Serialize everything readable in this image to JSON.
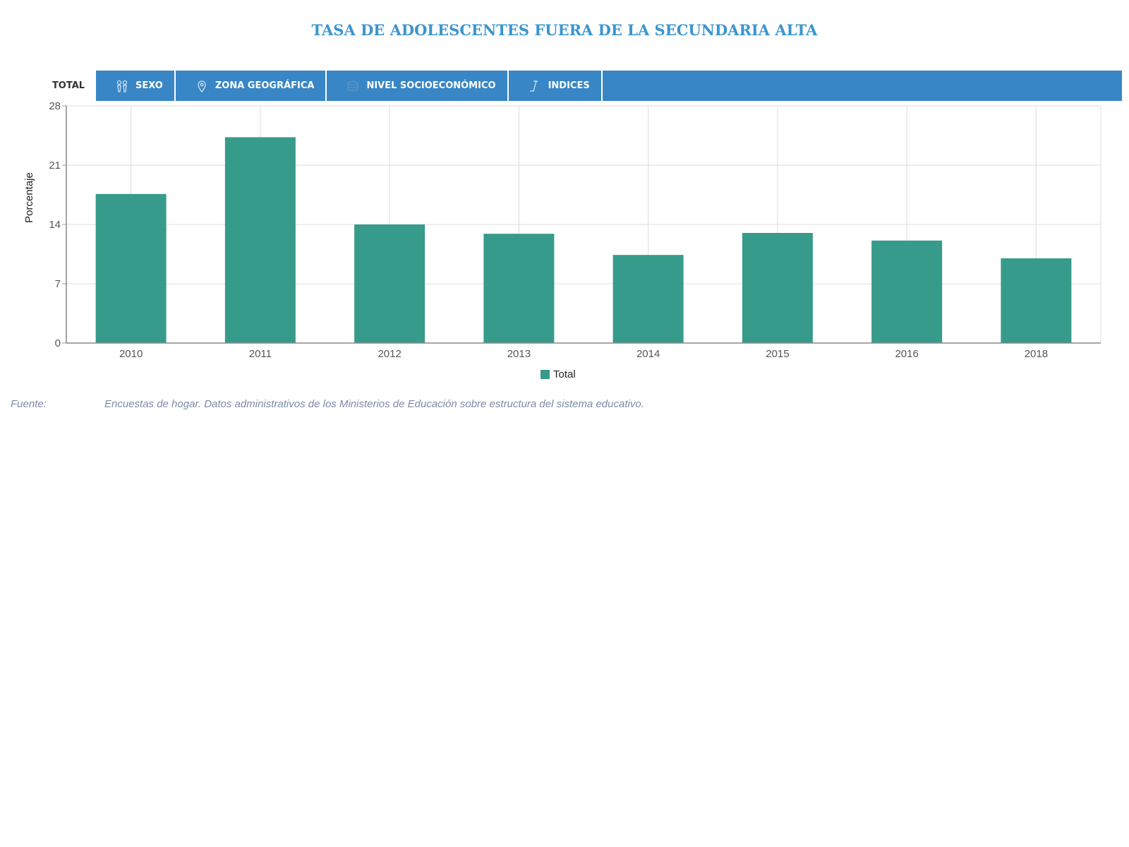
{
  "page": {
    "title": "TASA DE ADOLESCENTES FUERA DE LA SECUNDARIA ALTA"
  },
  "tabs": {
    "total": "TOTAL",
    "items": [
      {
        "label": "SEXO",
        "icon": "gender-icon"
      },
      {
        "label": "ZONA GEOGRÁFICA",
        "icon": "location-pin-icon"
      },
      {
        "label": "NIVEL SOCIOECONÓMICO",
        "icon": "coins-icon"
      },
      {
        "label": "INDICES",
        "icon": "index-icon"
      }
    ]
  },
  "colors": {
    "title": "#3a95cf",
    "tab_bar": "#3886c5",
    "bar": "#379b8b"
  },
  "chart_data": {
    "type": "bar",
    "categories": [
      "2010",
      "2011",
      "2012",
      "2013",
      "2014",
      "2015",
      "2016",
      "2018"
    ],
    "series": [
      {
        "name": "Total",
        "values": [
          17.6,
          24.3,
          14.0,
          12.9,
          10.4,
          13.0,
          12.1,
          10.0
        ]
      }
    ],
    "title": "",
    "xlabel": "",
    "ylabel": "Porcentaje",
    "ylim": [
      0,
      28
    ],
    "yticks": [
      "0",
      "7",
      "14",
      "21",
      "28"
    ],
    "grid": true,
    "legend": "bottom-center"
  },
  "source": {
    "label": "Fuente:",
    "text": "Encuestas de hogar. Datos administrativos de los Ministerios de Educación sobre estructura del sistema educativo."
  }
}
